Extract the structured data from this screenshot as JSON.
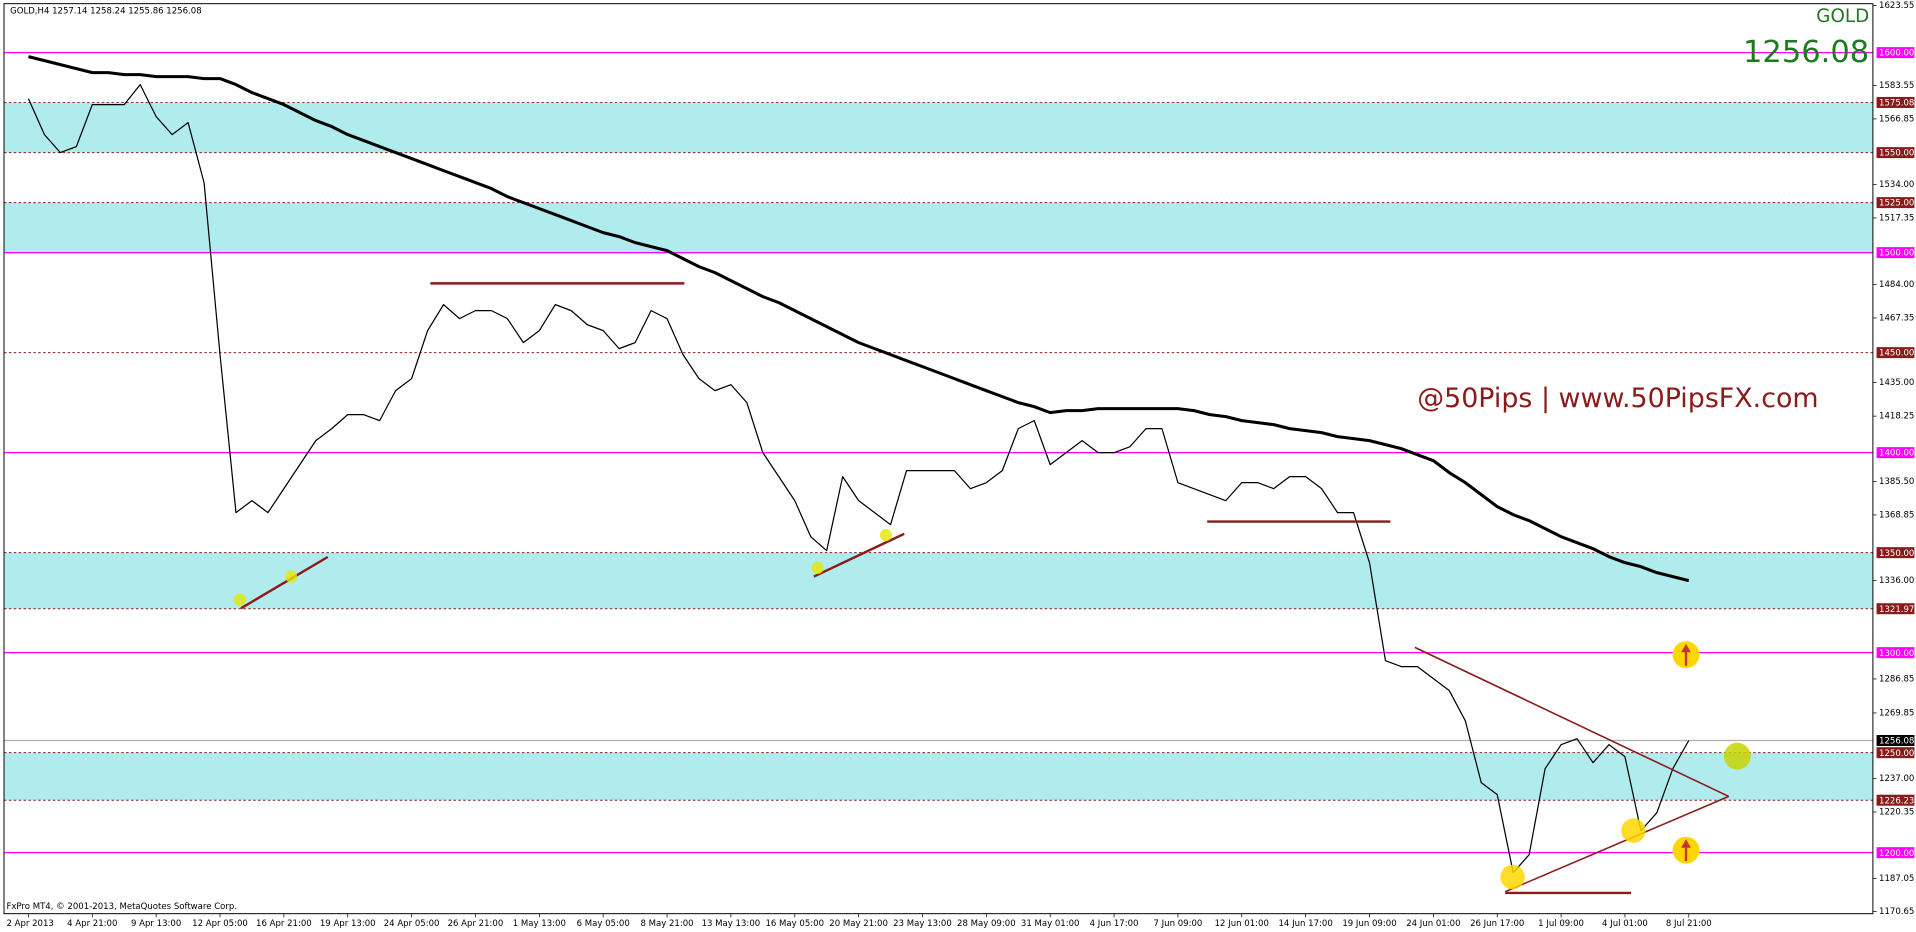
{
  "chart_data": {
    "type": "line",
    "header": "GOLD,H4  1257.14 1258.24 1255.86 1256.08",
    "symbol": "GOLD",
    "price_display": "1256.08",
    "watermark": "@50Pips | www.50PipsFX.com",
    "footer": "FxPro MT4, © 2001-2013, MetaQuotes Software Corp.",
    "ylim": [
      1169.5,
      1626.3
    ],
    "yticks": [
      {
        "value": 1623.55,
        "label": "1623.55"
      },
      {
        "value": 1583.55,
        "label": "1583.55"
      },
      {
        "value": 1566.85,
        "label": "1566.85"
      },
      {
        "value": 1534,
        "label": "1534.00"
      },
      {
        "value": 1517.35,
        "label": "1517.35"
      },
      {
        "value": 1484,
        "label": "1484.00"
      },
      {
        "value": 1467.35,
        "label": "1467.35"
      },
      {
        "value": 1435,
        "label": "1435.00"
      },
      {
        "value": 1418.25,
        "label": "1418.25"
      },
      {
        "value": 1385.5,
        "label": "1385.50"
      },
      {
        "value": 1368.85,
        "label": "1368.85"
      },
      {
        "value": 1336,
        "label": "1336.00"
      },
      {
        "value": 1286.85,
        "label": "1286.85"
      },
      {
        "value": 1269.85,
        "label": "1269.85"
      },
      {
        "value": 1237,
        "label": "1237.00"
      },
      {
        "value": 1220.35,
        "label": "1220.35"
      },
      {
        "value": 1187.05,
        "label": "1187.05"
      },
      {
        "value": 1170.65,
        "label": "1170.65"
      }
    ],
    "levels": [
      {
        "value": 1600,
        "label": "1600.00",
        "color": "#ff00ff",
        "dashed": false
      },
      {
        "value": 1575.08,
        "label": "1575.08",
        "color": "#8b1a1a",
        "dashed": true
      },
      {
        "value": 1550,
        "label": "1550.00",
        "color": "#8b1a1a",
        "dashed": true
      },
      {
        "value": 1525,
        "label": "1525.00",
        "color": "#8b1a1a",
        "dashed": true
      },
      {
        "value": 1500,
        "label": "1500.00",
        "color": "#ff00ff",
        "dashed": false
      },
      {
        "value": 1450,
        "label": "1450.00",
        "color": "#8b1a1a",
        "dashed": true
      },
      {
        "value": 1400,
        "label": "1400.00",
        "color": "#ff00ff",
        "dashed": false
      },
      {
        "value": 1350,
        "label": "1350.00",
        "color": "#8b1a1a",
        "dashed": true
      },
      {
        "value": 1321.97,
        "label": "1321.97",
        "color": "#8b1a1a",
        "dashed": true
      },
      {
        "value": 1300,
        "label": "1300.00",
        "color": "#ff00ff",
        "dashed": false
      },
      {
        "value": 1256.08,
        "label": "1256.08",
        "color": "#000000",
        "dashed": false
      },
      {
        "value": 1250,
        "label": "1250.00",
        "color": "#8b1a1a",
        "dashed": true
      },
      {
        "value": 1226.23,
        "label": "1226.23",
        "color": "#8b1a1a",
        "dashed": true
      },
      {
        "value": 1200,
        "label": "1200.00",
        "color": "#ff00ff",
        "dashed": false
      }
    ],
    "zones": [
      [
        1550,
        1575.08
      ],
      [
        1500,
        1525
      ],
      [
        1321.97,
        1350
      ],
      [
        1226.23,
        1250
      ]
    ],
    "zone_color": "#b0eced",
    "categories": [
      "2 Apr 2013",
      null,
      null,
      null,
      "4 Apr 21:00",
      null,
      null,
      null,
      "9 Apr 13:00",
      null,
      null,
      null,
      "12 Apr 05:00",
      null,
      null,
      null,
      "16 Apr 21:00",
      null,
      null,
      null,
      "19 Apr 13:00",
      null,
      null,
      null,
      "24 Apr 05:00",
      null,
      null,
      null,
      "26 Apr 21:00",
      null,
      null,
      null,
      "1 May 13:00",
      null,
      null,
      null,
      "6 May 05:00",
      null,
      null,
      null,
      "8 May 21:00",
      null,
      null,
      null,
      "13 May 13:00",
      null,
      null,
      null,
      "16 May 05:00",
      null,
      null,
      null,
      "20 May 21:00",
      null,
      null,
      null,
      "23 May 13:00",
      null,
      null,
      null,
      "28 May 09:00",
      null,
      null,
      null,
      "31 May 01:00",
      null,
      null,
      null,
      "4 Jun 17:00",
      null,
      null,
      null,
      "7 Jun 09:00",
      null,
      null,
      null,
      "12 Jun 01:00",
      null,
      null,
      null,
      "14 Jun 17:00",
      null,
      null,
      null,
      "19 Jun 09:00",
      null,
      null,
      null,
      "24 Jun 01:00",
      null,
      null,
      null,
      "26 Jun 17:00",
      null,
      null,
      null,
      "1 Jul 09:00",
      null,
      null,
      null,
      "4 Jul 01:00",
      null,
      null,
      null,
      "8 Jul 21:00"
    ],
    "series": [
      {
        "color": "#000000",
        "width": 1,
        "values": [
          1577,
          1559,
          1550,
          1553,
          1574,
          1574,
          1574,
          1584,
          1568,
          1559,
          1565,
          1535,
          1449,
          1370,
          1376,
          1370,
          1382,
          1394,
          1406,
          1412,
          1419,
          1419,
          1416,
          1431,
          1437,
          1461,
          1474,
          1467,
          1471,
          1471,
          1467,
          1455,
          1461,
          1474,
          1471,
          1464,
          1461,
          1452,
          1455,
          1471,
          1467,
          1449,
          1437,
          1431,
          1434,
          1425,
          1400,
          1388,
          1376,
          1358,
          1351,
          1388,
          1376,
          1370,
          1364,
          1391,
          1391,
          1391,
          1391,
          1382,
          1385,
          1391,
          1412,
          1416,
          1394,
          1400,
          1406,
          1400,
          1400,
          1403,
          1412,
          1412,
          1385,
          1382,
          1379,
          1376,
          1385,
          1385,
          1382,
          1388,
          1388,
          1382,
          1370,
          1370,
          1345,
          1296,
          1293,
          1293,
          1287,
          1281,
          1266,
          1235,
          1229,
          1190,
          1199,
          1242,
          1254,
          1257,
          1245,
          1254,
          1248,
          1211,
          1220,
          1242,
          1256.08
        ]
      },
      {
        "color": "#000000",
        "width": 2.5,
        "values": [
          1598,
          1596,
          1594,
          1592,
          1590,
          1590,
          1589,
          1589,
          1588,
          1588,
          1588,
          1587,
          1587,
          1584,
          1580,
          1577,
          1574,
          1570,
          1566,
          1563,
          1559,
          1556,
          1553,
          1550,
          1547,
          1544,
          1541,
          1538,
          1535,
          1532,
          1528,
          1525,
          1522,
          1519,
          1516,
          1513,
          1510,
          1508,
          1505,
          1503,
          1501,
          1497,
          1493,
          1490,
          1486,
          1482,
          1478,
          1475,
          1471,
          1467,
          1463,
          1459,
          1455,
          1452,
          1449,
          1446,
          1443,
          1440,
          1437,
          1434,
          1431,
          1428,
          1425,
          1423,
          1420,
          1421,
          1421,
          1422,
          1422,
          1422,
          1422,
          1422,
          1422,
          1421,
          1419,
          1418,
          1416,
          1415,
          1414,
          1412,
          1411,
          1410,
          1408,
          1407,
          1406,
          1404,
          1402,
          1399,
          1396,
          1390,
          1385,
          1379,
          1373,
          1369,
          1366,
          1362,
          1358,
          1355,
          1352,
          1348,
          1345,
          1343,
          1340,
          1338,
          1336
        ]
      }
    ]
  }
}
